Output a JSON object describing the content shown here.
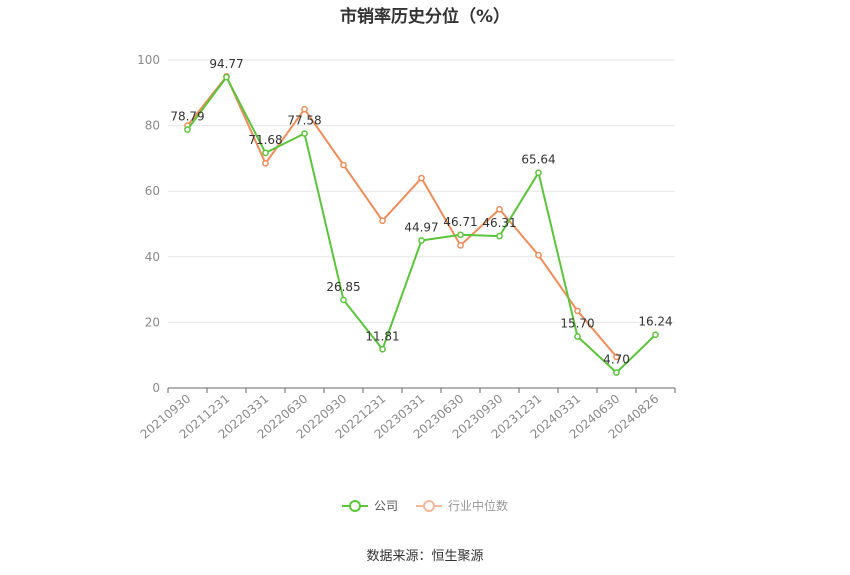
{
  "chart_data": {
    "type": "line",
    "title": "市销率历史分位（%）",
    "categories": [
      "20210930",
      "20211231",
      "20220331",
      "20220630",
      "20220930",
      "20221231",
      "20230331",
      "20230630",
      "20230930",
      "20231231",
      "20240331",
      "20240630",
      "20240826"
    ],
    "ylim": [
      0,
      100
    ],
    "yticks": [
      0,
      20,
      40,
      60,
      80,
      100
    ],
    "grid": true,
    "legend_position": "bottom",
    "series": [
      {
        "name": "公司",
        "color": "#5ac43a",
        "values": [
          78.79,
          94.77,
          71.68,
          77.58,
          26.85,
          11.81,
          44.97,
          46.71,
          46.31,
          65.64,
          15.7,
          4.7,
          16.24
        ],
        "labels": [
          "78.79",
          "94.77",
          "71.68",
          "77.58",
          "26.85",
          "11.81",
          "44.97",
          "46.71",
          "46.31",
          "65.64",
          "15.70",
          "4.70",
          "16.24"
        ]
      },
      {
        "name": "行业中位数",
        "color": "#f08c5a",
        "values": [
          80.0,
          95.0,
          68.5,
          85.0,
          68.0,
          51.0,
          64.0,
          43.5,
          54.5,
          40.5,
          23.5,
          9.5,
          null
        ]
      }
    ]
  },
  "legend": {
    "company": "公司",
    "industry": "行业中位数"
  },
  "source": "数据来源：恒生聚源"
}
